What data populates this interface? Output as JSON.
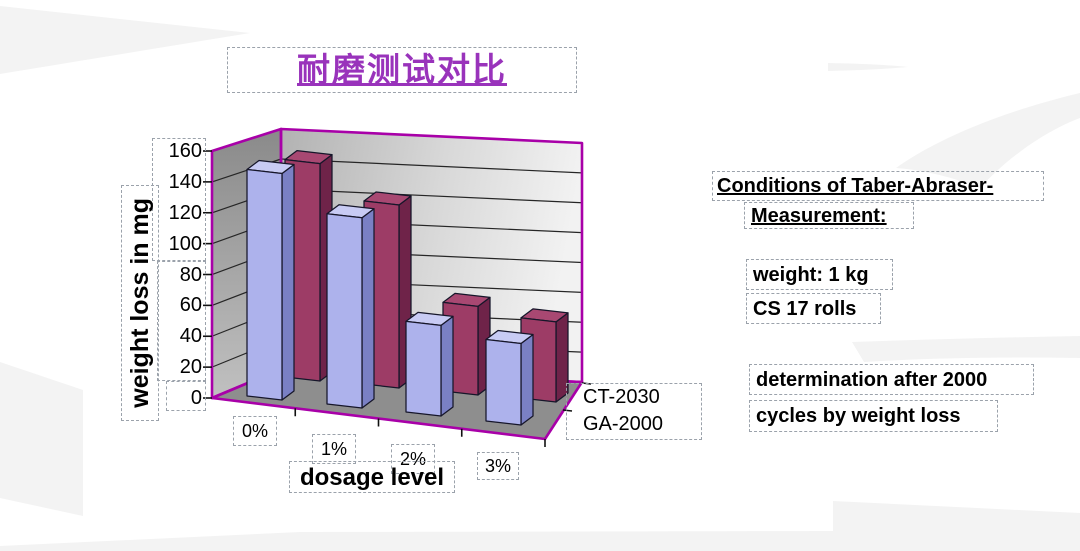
{
  "slide": {
    "title": "耐磨测试对比"
  },
  "chart_data": {
    "type": "bar",
    "projection": "3d",
    "categories": [
      "0%",
      "1%",
      "2%",
      "3%"
    ],
    "series": [
      {
        "name": "CT-2030",
        "row": "back",
        "values": [
          152,
          128,
          62,
          56
        ],
        "color": "#9d3c66",
        "color_top": "#a84872",
        "color_side": "#6f2349"
      },
      {
        "name": "GA-2000",
        "row": "front",
        "values": [
          150,
          126,
          60,
          54
        ],
        "color": "#adb2ec",
        "color_top": "#c8cbf4",
        "color_side": "#7a80c4"
      }
    ],
    "xlabel": "dosage level",
    "ylabel": "weight loss in mg",
    "ylim": [
      0,
      160
    ],
    "ytick_step": 20,
    "ytick_labels": [
      "160",
      "140",
      "120",
      "100",
      "80",
      "60",
      "40",
      "20",
      "0"
    ],
    "grid": true,
    "legend_position": "series-axis-right"
  },
  "conditions_panel": {
    "heading_line1": "Conditions of Taber-Abraser-",
    "heading_line2": "Measurement:",
    "item1": "weight: 1 kg",
    "item2": "CS 17 rolls",
    "item3_line1": "determination after 2000",
    "item3_line2": "cycles by weight loss"
  },
  "colors": {
    "chart_frame": "#a800a8",
    "title_text": "#9933bb",
    "wall_left_top": "#8a8a8a",
    "wall_left_bottom": "#c0c0c0",
    "wall_back_left": "#b2b2b2",
    "wall_back_right": "#f2f2f2",
    "floor": "#8e8e8e",
    "gridline": "#262626",
    "bar_outline": "#16162a",
    "background_swirl": "#f3f3f3",
    "selection_dash": "#9ba2ab"
  }
}
